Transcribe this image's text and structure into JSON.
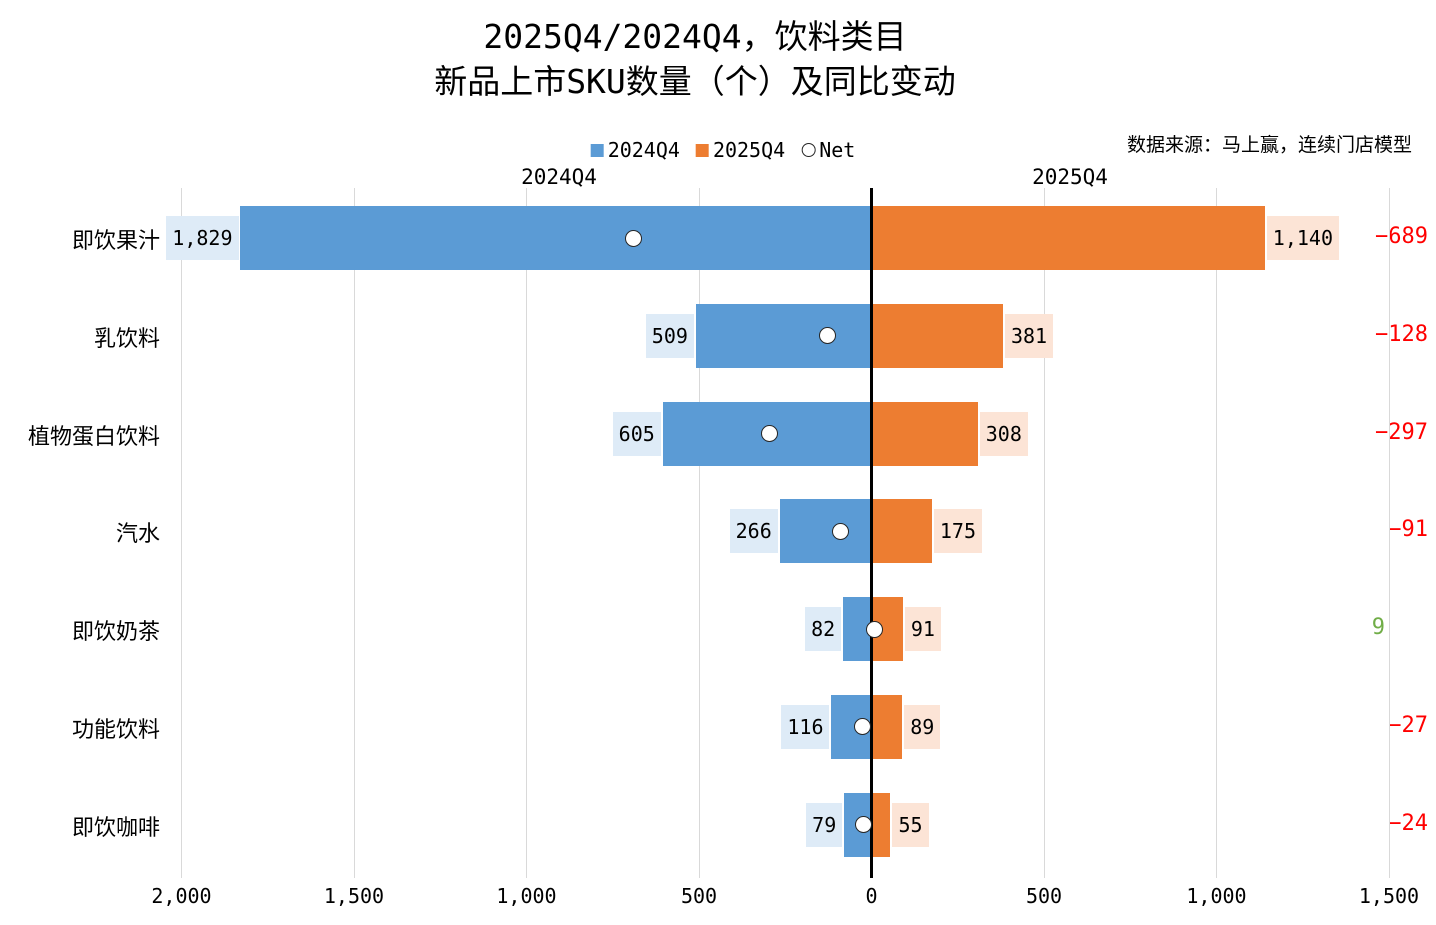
{
  "chart_data": {
    "type": "bar",
    "variant": "diverging-horizontal",
    "title": "2025Q4/2024Q4，饮料类目",
    "subtitle": "新品上市SKU数量（个）及同比变动",
    "source": "数据来源：马上赢，连续门店模型",
    "legend": [
      "2024Q4",
      "2025Q4",
      "Net"
    ],
    "legend_position": "top-center",
    "column_headers": {
      "left": "2024Q4",
      "right": "2025Q4"
    },
    "categories": [
      "即饮果汁",
      "乳饮料",
      "植物蛋白饮料",
      "汽水",
      "即饮奶茶",
      "功能饮料",
      "即饮咖啡"
    ],
    "series": [
      {
        "name": "2024Q4",
        "side": "left",
        "values": [
          1829,
          509,
          605,
          266,
          82,
          116,
          79
        ],
        "labels": [
          "1,829",
          "509",
          "605",
          "266",
          "82",
          "116",
          "79"
        ]
      },
      {
        "name": "2025Q4",
        "side": "right",
        "values": [
          1140,
          381,
          308,
          175,
          91,
          89,
          55
        ],
        "labels": [
          "1,140",
          "381",
          "308",
          "175",
          "91",
          "89",
          "55"
        ]
      },
      {
        "name": "Net",
        "type": "marker",
        "values": [
          -689,
          -128,
          -297,
          -91,
          9,
          -27,
          -24
        ],
        "labels": [
          "−689",
          "−128",
          "−297",
          "−91",
          "9",
          "−27",
          "−24"
        ]
      }
    ],
    "x_axis": {
      "range": [
        -2000,
        1500
      ],
      "grid": true,
      "ticks": [
        {
          "label": "2,000",
          "value": -2000
        },
        {
          "label": "1,500",
          "value": -1500
        },
        {
          "label": "1,000",
          "value": -1000
        },
        {
          "label": "500",
          "value": -500
        },
        {
          "label": "0",
          "value": 0
        },
        {
          "label": "500",
          "value": 500
        },
        {
          "label": "1,000",
          "value": 1000
        },
        {
          "label": "1,500",
          "value": 1500
        }
      ]
    },
    "colors": {
      "bar_2024": "#5B9BD5",
      "bar_2025": "#ED7D31",
      "label_bg_2024": "#DEEBF7",
      "label_bg_2025": "#FCE4D6",
      "net_negative": "#FF0000",
      "net_positive": "#70AD47",
      "marker_fill": "#FFFFFF",
      "marker_stroke": "#262626",
      "gridline": "#D9D9D9",
      "zero_line": "#000000",
      "text": "#000000"
    }
  }
}
